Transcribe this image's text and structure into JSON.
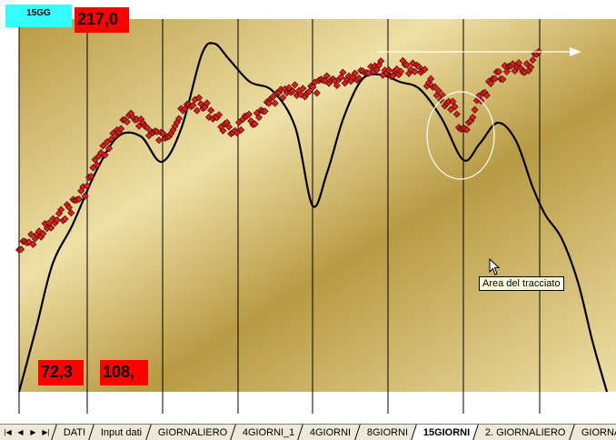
{
  "sheet": {
    "label_top": "15GG",
    "value_top": "217,0",
    "value_bottom_left": "72,3",
    "value_bottom_mid": "108,",
    "tooltip": "Area del tracciato"
  },
  "colors": {
    "chart_gradient_light": "#efe0a6",
    "chart_gradient_dark": "#b89a44",
    "marker": "#d42020",
    "curve": "#000000",
    "label_cyan": "#33ffff",
    "value_red": "#ff0000"
  },
  "icons": [
    "first-sheet-icon",
    "prev-sheet-icon",
    "next-sheet-icon",
    "last-sheet-icon",
    "mouse-pointer-icon"
  ],
  "tabs": [
    {
      "label": "DATI",
      "active": false
    },
    {
      "label": "Input dati",
      "active": false
    },
    {
      "label": "GIORNALIERO",
      "active": false
    },
    {
      "label": "4GIORNI_1",
      "active": false
    },
    {
      "label": "4GIORNI",
      "active": false
    },
    {
      "label": "8GIORNI",
      "active": false
    },
    {
      "label": "15GIORNI",
      "active": true
    },
    {
      "label": "2. GIORNALIERO",
      "active": false
    },
    {
      "label": "GIORNALI",
      "active": false
    }
  ]
}
